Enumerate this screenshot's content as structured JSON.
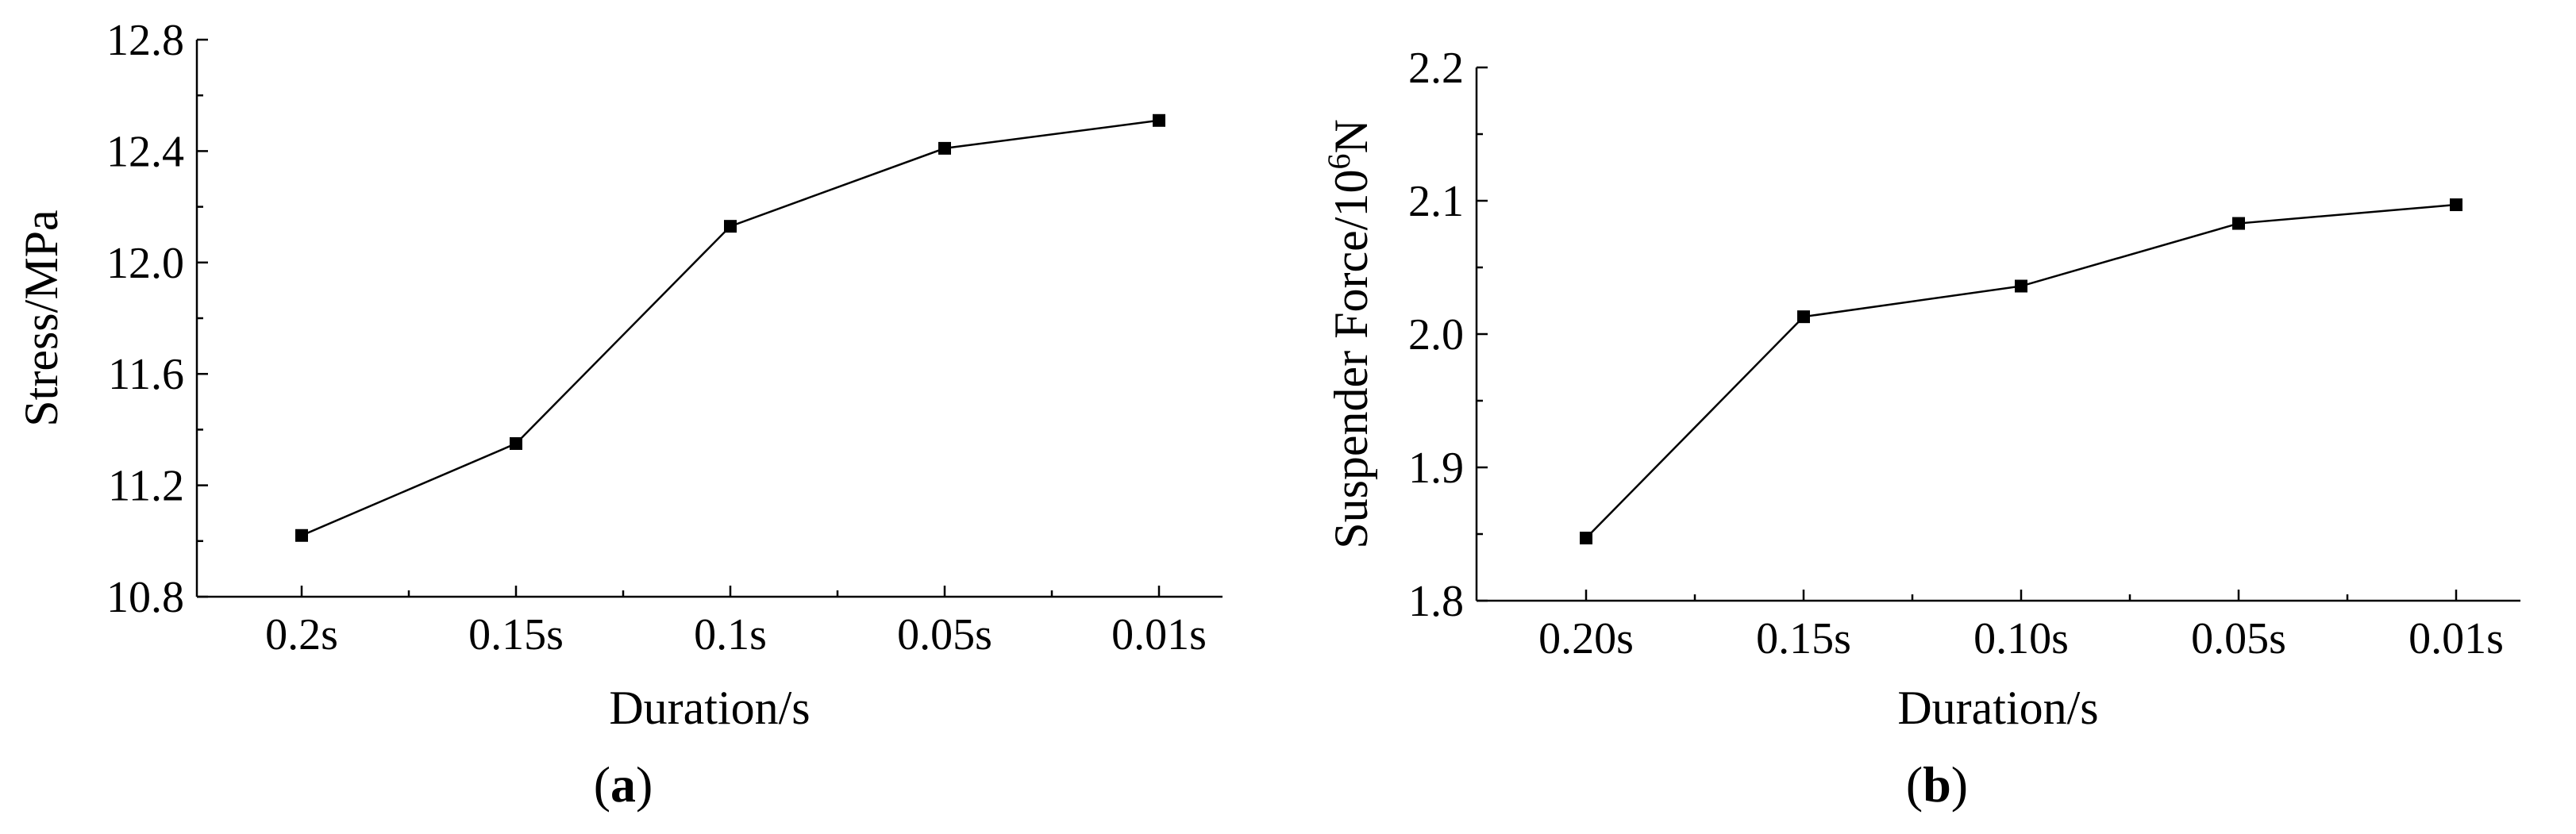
{
  "chart_data": [
    {
      "type": "line",
      "caption": {
        "open": "(",
        "letter": "a",
        "close": ")"
      },
      "xlabel": "Duration/s",
      "ylabel": "Stress/MPa",
      "categories": [
        "0.2s",
        "0.15s",
        "0.1s",
        "0.05s",
        "0.01s"
      ],
      "values": [
        11.02,
        11.35,
        12.13,
        12.41,
        12.51
      ],
      "ylim": [
        10.8,
        12.8
      ],
      "yticks": [
        "10.8",
        "11.2",
        "11.6",
        "12.0",
        "12.4",
        "12.8"
      ],
      "ytick_values": [
        10.8,
        11.2,
        11.6,
        12.0,
        12.4,
        12.8
      ],
      "grid": false,
      "colors": {
        "line": "#000000",
        "marker": "#000000"
      }
    },
    {
      "type": "line",
      "caption": {
        "open": "(",
        "letter": "b",
        "close": ")"
      },
      "xlabel": "Duration/s",
      "ylabel": {
        "prefix": "Suspender Force/10",
        "sup": "6",
        "suffix": "N"
      },
      "categories": [
        "0.20s",
        "0.15s",
        "0.10s",
        "0.05s",
        "0.01s"
      ],
      "values": [
        1.847,
        2.013,
        2.036,
        2.083,
        2.097
      ],
      "ylim": [
        1.8,
        2.2
      ],
      "yticks": [
        "1.8",
        "1.9",
        "2.0",
        "2.1",
        "2.2"
      ],
      "ytick_values": [
        1.8,
        1.9,
        2.0,
        2.1,
        2.2
      ],
      "grid": false,
      "colors": {
        "line": "#000000",
        "marker": "#000000"
      }
    }
  ]
}
